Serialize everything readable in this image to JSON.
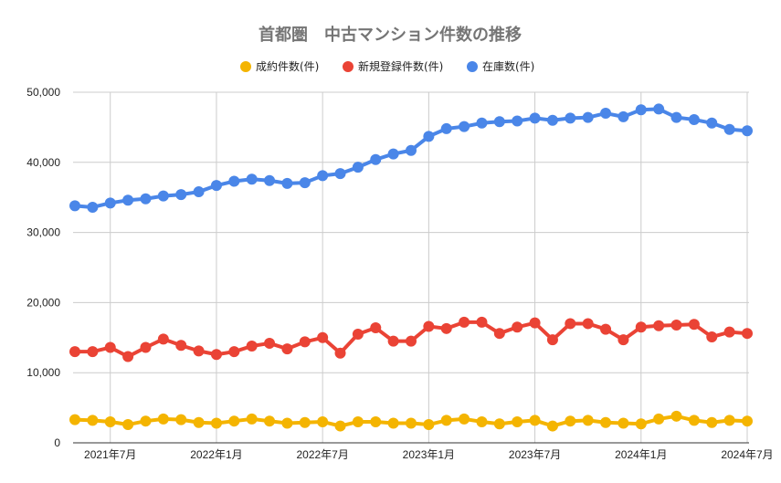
{
  "chart_data": {
    "type": "line",
    "title": "首都圏　中古マンション件数の推移",
    "xlabel": "",
    "ylabel": "",
    "ylim": [
      0,
      50000
    ],
    "yticks": [
      0,
      10000,
      20000,
      30000,
      40000,
      50000
    ],
    "ytick_labels": [
      "0",
      "10,000",
      "20,000",
      "30,000",
      "40,000",
      "50,000"
    ],
    "xticks": [
      {
        "index": 2,
        "label": "2021年7月"
      },
      {
        "index": 8,
        "label": "2022年1月"
      },
      {
        "index": 14,
        "label": "2022年7月"
      },
      {
        "index": 20,
        "label": "2023年1月"
      },
      {
        "index": 26,
        "label": "2023年7月"
      },
      {
        "index": 32,
        "label": "2024年1月"
      },
      {
        "index": 38,
        "label": "2024年7月"
      }
    ],
    "categories": [
      "2021年5月",
      "2021年6月",
      "2021年7月",
      "2021年8月",
      "2021年9月",
      "2021年10月",
      "2021年11月",
      "2021年12月",
      "2022年1月",
      "2022年2月",
      "2022年3月",
      "2022年4月",
      "2022年5月",
      "2022年6月",
      "2022年7月",
      "2022年8月",
      "2022年9月",
      "2022年10月",
      "2022年11月",
      "2022年12月",
      "2023年1月",
      "2023年2月",
      "2023年3月",
      "2023年4月",
      "2023年5月",
      "2023年6月",
      "2023年7月",
      "2023年8月",
      "2023年9月",
      "2023年10月",
      "2023年11月",
      "2023年12月",
      "2024年1月",
      "2024年2月",
      "2024年3月",
      "2024年4月",
      "2024年5月",
      "2024年6月",
      "2024年7月"
    ],
    "grid": true,
    "legend_position": "top",
    "series": [
      {
        "name": "成約件数(件)",
        "color": "#f4b400",
        "values": [
          3300,
          3200,
          3000,
          2600,
          3100,
          3400,
          3300,
          2900,
          2800,
          3100,
          3400,
          3100,
          2800,
          2900,
          3000,
          2400,
          3000,
          3000,
          2800,
          2800,
          2600,
          3200,
          3400,
          3000,
          2700,
          3000,
          3200,
          2400,
          3100,
          3200,
          2900,
          2800,
          2700,
          3400,
          3800,
          3200,
          2900,
          3200,
          3100
        ]
      },
      {
        "name": "新規登録件数(件)",
        "color": "#ea4335",
        "values": [
          13000,
          13000,
          13600,
          12300,
          13600,
          14800,
          13900,
          13100,
          12600,
          13000,
          13800,
          14200,
          13400,
          14400,
          15000,
          12800,
          15500,
          16400,
          14500,
          14500,
          16600,
          16300,
          17200,
          17200,
          15600,
          16500,
          17100,
          14700,
          17000,
          17000,
          16200,
          14700,
          16500,
          16700,
          16800,
          16900,
          15100,
          15800,
          15600
        ]
      },
      {
        "name": "在庫数(件)",
        "color": "#4a86e8",
        "values": [
          33800,
          33600,
          34200,
          34600,
          34800,
          35200,
          35400,
          35800,
          36700,
          37300,
          37600,
          37400,
          37000,
          37100,
          38100,
          38400,
          39300,
          40400,
          41200,
          41700,
          43700,
          44800,
          45100,
          45600,
          45800,
          45900,
          46300,
          46000,
          46300,
          46400,
          47000,
          46500,
          47500,
          47600,
          46400,
          46100,
          45600,
          44700,
          44500
        ]
      }
    ]
  }
}
